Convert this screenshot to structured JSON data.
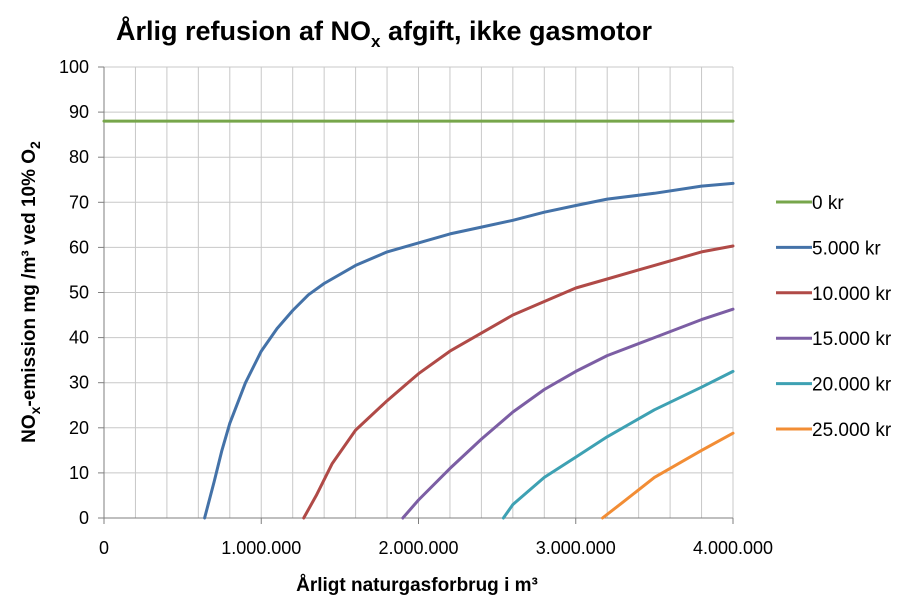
{
  "chart_data": {
    "type": "line",
    "title": {
      "main": "Årlig refusion af NO",
      "sub": "x",
      "rest": " afgift, ikke gasmotor"
    },
    "xlabel": "Årligt naturgasforbrug i m³",
    "ylabel": {
      "p1": "NO",
      "sub1": "x",
      "p2": "-emission mg /m³ ved 10% O",
      "sub2": "2"
    },
    "xlim": [
      0,
      4000000
    ],
    "ylim": [
      0,
      100
    ],
    "x_ticks": [
      0,
      1000000,
      2000000,
      3000000,
      4000000
    ],
    "x_tick_labels": [
      "0",
      "1.000.000",
      "2.000.000",
      "3.000.000",
      "4.000.000"
    ],
    "y_ticks": [
      0,
      10,
      20,
      30,
      40,
      50,
      60,
      70,
      80,
      90,
      100
    ],
    "y_tick_labels": [
      "0",
      "10",
      "20",
      "30",
      "40",
      "50",
      "60",
      "70",
      "80",
      "90",
      "100"
    ],
    "x_minor_step": 200000,
    "grid": true,
    "legend_position": "right",
    "series": [
      {
        "name": "0 kr",
        "color": "#77a64b",
        "points": [
          [
            0,
            88
          ],
          [
            4000000,
            88
          ]
        ]
      },
      {
        "name": "5.000 kr",
        "color": "#4472a8",
        "points": [
          [
            640000,
            0
          ],
          [
            700000,
            8
          ],
          [
            750000,
            15
          ],
          [
            800000,
            21
          ],
          [
            900000,
            30
          ],
          [
            1000000,
            37
          ],
          [
            1100000,
            42
          ],
          [
            1200000,
            46
          ],
          [
            1300000,
            49.5
          ],
          [
            1400000,
            52
          ],
          [
            1600000,
            56
          ],
          [
            1800000,
            59
          ],
          [
            2000000,
            61
          ],
          [
            2200000,
            63
          ],
          [
            2400000,
            64.5
          ],
          [
            2600000,
            66
          ],
          [
            2800000,
            67.8
          ],
          [
            3000000,
            69.3
          ],
          [
            3200000,
            70.7
          ],
          [
            3500000,
            72
          ],
          [
            3800000,
            73.6
          ],
          [
            4000000,
            74.2
          ]
        ]
      },
      {
        "name": "10.000 kr",
        "color": "#b04a47",
        "points": [
          [
            1270000,
            0
          ],
          [
            1350000,
            5
          ],
          [
            1450000,
            12
          ],
          [
            1600000,
            19.5
          ],
          [
            1800000,
            26
          ],
          [
            2000000,
            32
          ],
          [
            2200000,
            37
          ],
          [
            2400000,
            41
          ],
          [
            2600000,
            45
          ],
          [
            2800000,
            48
          ],
          [
            3000000,
            51
          ],
          [
            3200000,
            53
          ],
          [
            3500000,
            56
          ],
          [
            3800000,
            59
          ],
          [
            4000000,
            60.3
          ]
        ]
      },
      {
        "name": "15.000 kr",
        "color": "#7c5ea4",
        "points": [
          [
            1900000,
            0
          ],
          [
            2000000,
            4
          ],
          [
            2200000,
            11
          ],
          [
            2400000,
            17.5
          ],
          [
            2600000,
            23.5
          ],
          [
            2800000,
            28.5
          ],
          [
            3000000,
            32.5
          ],
          [
            3200000,
            36
          ],
          [
            3500000,
            40
          ],
          [
            3800000,
            44
          ],
          [
            4000000,
            46.3
          ]
        ]
      },
      {
        "name": "20.000 kr",
        "color": "#3ea1b3",
        "points": [
          [
            2540000,
            0
          ],
          [
            2600000,
            3
          ],
          [
            2800000,
            9
          ],
          [
            3000000,
            13.5
          ],
          [
            3200000,
            18
          ],
          [
            3500000,
            24
          ],
          [
            3800000,
            29
          ],
          [
            4000000,
            32.5
          ]
        ]
      },
      {
        "name": "25.000 kr",
        "color": "#f28d35",
        "points": [
          [
            3170000,
            0
          ],
          [
            3300000,
            3.5
          ],
          [
            3500000,
            9
          ],
          [
            3800000,
            15
          ],
          [
            4000000,
            18.8
          ]
        ]
      }
    ]
  }
}
